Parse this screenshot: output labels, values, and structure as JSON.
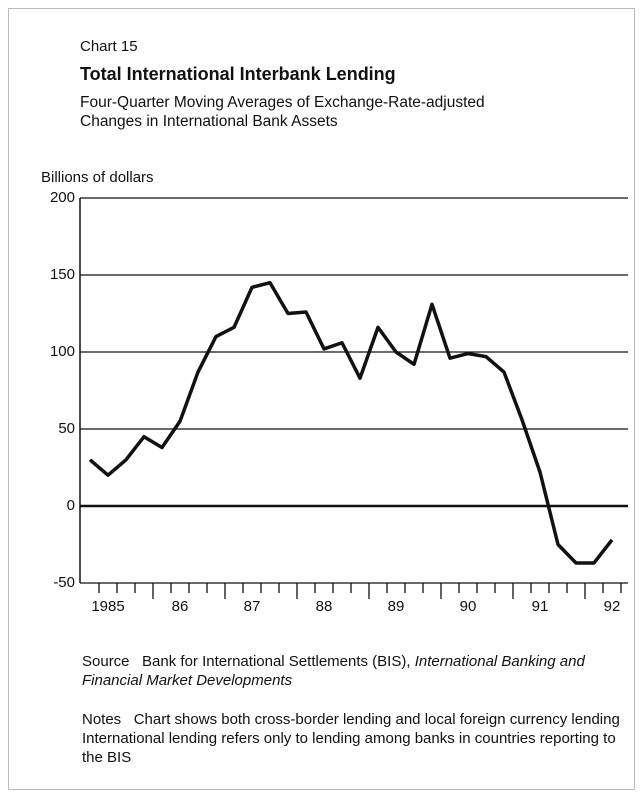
{
  "chart_data": {
    "type": "line",
    "label": "Chart 15",
    "title": "Total International Interbank Lending",
    "subtitle": [
      "Four-Quarter Moving Averages of Exchange-Rate-adjusted",
      "Changes in International Bank Assets"
    ],
    "ylabel": "Billions of dollars",
    "categories": [
      null,
      "1985",
      null,
      null,
      null,
      "86",
      null,
      null,
      null,
      "87",
      null,
      null,
      null,
      "88",
      null,
      null,
      null,
      "89",
      null,
      null,
      null,
      "90",
      null,
      null,
      null,
      "91",
      null,
      null,
      null,
      "92"
    ],
    "series": [
      {
        "color": "#111111",
        "values": [
          30,
          20,
          30,
          45,
          38,
          55,
          87,
          110,
          116,
          142,
          145,
          125,
          126,
          102,
          106,
          83,
          116,
          100,
          92,
          131,
          96,
          99,
          97,
          87,
          56,
          22,
          -25,
          -37,
          -37,
          -22
        ]
      }
    ],
    "ylim": [
      -50,
      200
    ],
    "yticks": [
      -50,
      0,
      50,
      100,
      150,
      200
    ],
    "grid": true,
    "source_label": "Source",
    "source_text": "Bank for International Settlements (BIS),",
    "source_italic": "International Banking and Financial Market Developments",
    "notes_label": "Notes",
    "notes_text": "Chart shows both cross-border lending and local foreign currency lending International lending refers only to lending among banks in countries reporting to the BIS"
  }
}
